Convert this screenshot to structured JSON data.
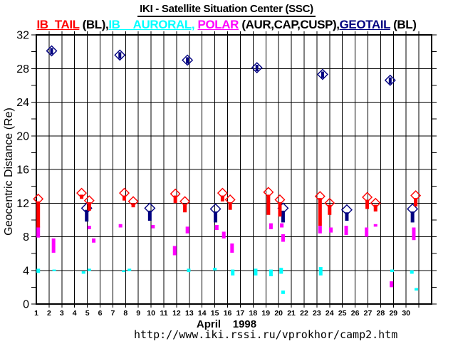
{
  "page": {
    "title": "IKI - Satellite Situation Center (SSC)",
    "url": "http://www.iki.rssi.ru/vprokhor/camp2.htm"
  },
  "legend": {
    "parts": [
      {
        "text": "IB_TAIL",
        "color": "#ff0000",
        "underline": true
      },
      {
        "text": " (BL),",
        "color": "#000000",
        "underline": false
      },
      {
        "text": "IB__AURORAL,",
        "color": "#00ffff",
        "underline": true
      },
      {
        "text": " ",
        "color": "#000000",
        "underline": false
      },
      {
        "text": "POLAR",
        "color": "#ff00ff",
        "underline": true
      },
      {
        "text": " (AUR,CAP,CUSP),",
        "color": "#000000",
        "underline": false
      },
      {
        "text": "GEOTAIL",
        "color": "#000080",
        "underline": true
      },
      {
        "text": " (BL)",
        "color": "#000000",
        "underline": false
      }
    ]
  },
  "chart_data": {
    "type": "scatter",
    "title": "IKI - Satellite Situation Center (SSC)",
    "xlabel": "April    1998",
    "ylabel": "Geocentric Distance (Re)",
    "xlim": [
      1,
      32
    ],
    "ylim": [
      0,
      32
    ],
    "x_tick_labels": [
      1,
      2,
      3,
      4,
      5,
      6,
      7,
      8,
      9,
      10,
      11,
      12,
      13,
      14,
      15,
      16,
      17,
      18,
      19,
      20,
      21,
      22,
      23,
      24,
      25,
      26,
      27,
      28,
      29,
      30
    ],
    "y_tick_labels": [
      0,
      4,
      8,
      12,
      16,
      20,
      24,
      28,
      32
    ],
    "y_minor_tick_step": 2,
    "grid": "on",
    "axis_color": "#000000",
    "background": "#ffffff",
    "series": [
      {
        "name": "IB__AURORAL",
        "color": "#00ffff",
        "marker": "thick-bar",
        "segments_day_ymin_ymax": [
          [
            1.15,
            3.7,
            4.2
          ],
          [
            2.4,
            3.9,
            4.1
          ],
          [
            4.7,
            3.6,
            3.9
          ],
          [
            5.15,
            3.9,
            4.2
          ],
          [
            7.85,
            3.8,
            4.0
          ],
          [
            8.3,
            3.9,
            4.2
          ],
          [
            12.95,
            3.8,
            4.2
          ],
          [
            15.0,
            4.0,
            4.3
          ],
          [
            16.4,
            3.4,
            4.1
          ],
          [
            18.2,
            3.4,
            4.2
          ],
          [
            19.4,
            3.3,
            4.1
          ],
          [
            20.2,
            3.6,
            4.3
          ],
          [
            20.35,
            1.2,
            1.6
          ],
          [
            23.3,
            3.4,
            4.4
          ],
          [
            28.9,
            3.8,
            4.1
          ],
          [
            30.45,
            3.6,
            4.0
          ],
          [
            30.8,
            1.6,
            1.9
          ]
        ]
      },
      {
        "name": "POLAR",
        "annotation": "(AUR,CAP,CUSP)",
        "color": "#ff00ff",
        "marker": "thick-bar",
        "segments_day_ymin_ymax": [
          [
            1.15,
            7.9,
            9.2
          ],
          [
            2.35,
            6.1,
            7.8
          ],
          [
            5.15,
            8.9,
            9.3
          ],
          [
            5.5,
            7.3,
            7.8
          ],
          [
            7.6,
            9.1,
            9.5
          ],
          [
            10.15,
            9.0,
            9.4
          ],
          [
            11.85,
            5.8,
            6.9
          ],
          [
            12.85,
            8.4,
            9.2
          ],
          [
            15.15,
            8.8,
            9.4
          ],
          [
            15.7,
            7.8,
            8.6
          ],
          [
            16.35,
            6.1,
            7.2
          ],
          [
            19.4,
            8.9,
            9.6
          ],
          [
            20.25,
            9.1,
            9.6
          ],
          [
            20.35,
            7.4,
            8.3
          ],
          [
            23.25,
            8.4,
            9.3
          ],
          [
            24.1,
            8.5,
            9.1
          ],
          [
            25.3,
            8.2,
            9.3
          ],
          [
            26.9,
            8.0,
            9.1
          ],
          [
            27.6,
            9.2,
            9.5
          ],
          [
            28.85,
            2.0,
            2.7
          ],
          [
            30.6,
            7.6,
            9.1
          ]
        ]
      },
      {
        "name": "GEOTAIL",
        "annotation": "(BL)",
        "color": "#000080",
        "marker": "open-diamond",
        "apogee_day_value": [
          [
            2.2,
            30.1
          ],
          [
            7.55,
            29.6
          ],
          [
            12.85,
            29.0
          ],
          [
            18.3,
            28.1
          ],
          [
            23.45,
            27.3
          ],
          [
            28.75,
            26.6
          ]
        ],
        "perigee_day_ymin_ymax_diamond": [
          [
            4.95,
            9.8,
            11.2,
            11.4
          ],
          [
            9.9,
            9.9,
            11.1,
            11.4
          ],
          [
            15.05,
            9.7,
            11.0,
            11.3
          ],
          [
            20.35,
            9.7,
            11.1,
            11.4
          ],
          [
            25.35,
            9.9,
            10.9,
            11.2
          ],
          [
            30.5,
            9.7,
            11.0,
            11.3
          ]
        ]
      },
      {
        "name": "IB_TAIL",
        "annotation": "(BL)",
        "color": "#ff0000",
        "marker": "thick-bar-with-open-diamond-top",
        "passes_day_ymin_ymax_diamond": [
          [
            1.15,
            9.1,
            12.2,
            12.5
          ],
          [
            4.55,
            12.5,
            13.0,
            13.2
          ],
          [
            5.15,
            11.1,
            12.1,
            12.3
          ],
          [
            7.9,
            12.3,
            12.9,
            13.2
          ],
          [
            8.6,
            11.5,
            12.0,
            12.2
          ],
          [
            11.9,
            12.0,
            12.9,
            13.1
          ],
          [
            12.65,
            10.9,
            11.9,
            12.2
          ],
          [
            15.6,
            12.2,
            12.9,
            13.2
          ],
          [
            16.2,
            11.2,
            12.1,
            12.4
          ],
          [
            19.2,
            10.6,
            13.0,
            13.3
          ],
          [
            20.1,
            10.4,
            12.1,
            12.4
          ],
          [
            23.25,
            9.3,
            12.6,
            12.8
          ],
          [
            24.0,
            10.6,
            11.8,
            12.0
          ],
          [
            26.95,
            11.3,
            12.4,
            12.7
          ],
          [
            27.6,
            11.0,
            11.8,
            12.0
          ],
          [
            30.75,
            11.6,
            12.6,
            12.9
          ]
        ]
      }
    ]
  }
}
